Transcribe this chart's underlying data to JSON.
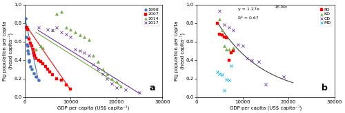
{
  "panel_a": {
    "series": {
      "1998": {
        "color": "#4472C4",
        "marker": "o",
        "markersize": 3,
        "points": [
          [
            200,
            0.85
          ],
          [
            300,
            0.65
          ],
          [
            500,
            0.57
          ],
          [
            600,
            0.55
          ],
          [
            700,
            0.5
          ],
          [
            800,
            0.47
          ],
          [
            900,
            0.4
          ],
          [
            1000,
            0.38
          ],
          [
            1200,
            0.33
          ],
          [
            1500,
            0.3
          ],
          [
            2000,
            0.26
          ],
          [
            2500,
            0.22
          ],
          [
            3000,
            0.18
          ]
        ]
      },
      "2007": {
        "color": "#FF0000",
        "marker": "s",
        "markersize": 3,
        "points": [
          [
            500,
            0.75
          ],
          [
            700,
            0.73
          ],
          [
            1000,
            0.63
          ],
          [
            1200,
            0.58
          ],
          [
            1500,
            0.55
          ],
          [
            1800,
            0.52
          ],
          [
            2000,
            0.48
          ],
          [
            2200,
            0.45
          ],
          [
            2500,
            0.42
          ],
          [
            3000,
            0.4
          ],
          [
            3500,
            0.38
          ],
          [
            4000,
            0.36
          ],
          [
            4500,
            0.33
          ],
          [
            5000,
            0.3
          ],
          [
            5500,
            0.27
          ],
          [
            6000,
            0.24
          ],
          [
            7000,
            0.2
          ],
          [
            8000,
            0.18
          ],
          [
            9000,
            0.13
          ],
          [
            10000,
            0.09
          ]
        ]
      },
      "2014": {
        "color": "#70AD47",
        "marker": "^",
        "markersize": 3,
        "points": [
          [
            2500,
            0.52
          ],
          [
            3500,
            0.55
          ],
          [
            4000,
            0.53
          ],
          [
            6000,
            0.72
          ],
          [
            7000,
            0.9
          ],
          [
            8000,
            0.92
          ],
          [
            9000,
            0.75
          ],
          [
            10000,
            0.73
          ],
          [
            11000,
            0.7
          ],
          [
            12000,
            0.67
          ],
          [
            13000,
            0.65
          ],
          [
            14000,
            0.62
          ],
          [
            15000,
            0.45
          ],
          [
            16000,
            0.38
          ],
          [
            17000,
            0.3
          ],
          [
            18000,
            0.25
          ],
          [
            19000,
            0.2
          ],
          [
            20000,
            0.17
          ],
          [
            21000,
            0.12
          ]
        ]
      },
      "2017": {
        "color": "#7030A0",
        "marker": "x",
        "markersize": 3,
        "points": [
          [
            3000,
            0.75
          ],
          [
            5000,
            0.73
          ],
          [
            6000,
            0.72
          ],
          [
            7000,
            0.75
          ],
          [
            8000,
            0.7
          ],
          [
            9000,
            0.68
          ],
          [
            10000,
            0.65
          ],
          [
            11000,
            0.52
          ],
          [
            12000,
            0.5
          ],
          [
            13000,
            0.48
          ],
          [
            14000,
            0.45
          ],
          [
            15000,
            0.35
          ],
          [
            16000,
            0.3
          ],
          [
            17000,
            0.25
          ],
          [
            18000,
            0.2
          ],
          [
            19000,
            0.15
          ],
          [
            20000,
            0.1
          ],
          [
            22000,
            0.08
          ],
          [
            25000,
            0.05
          ]
        ]
      }
    },
    "trend_lines": [
      {
        "color": "#4472C4",
        "x_start": 200,
        "x_end": 3000,
        "y_start": 0.83,
        "y_end": 0.18
      },
      {
        "color": "#FF0000",
        "x_start": 500,
        "x_end": 10000,
        "y_start": 0.76,
        "y_end": 0.08
      },
      {
        "color": "#70AD47",
        "x_start": 2500,
        "x_end": 21000,
        "y_start": 0.7,
        "y_end": 0.12
      },
      {
        "color": "#7030A0",
        "x_start": 3000,
        "x_end": 25000,
        "y_start": 0.72,
        "y_end": 0.04
      }
    ],
    "xlabel": "GDP per capita (US$ capita⁻¹)",
    "ylabel": "Pig population per capita\n(head capita⁻¹)",
    "xlim": [
      0,
      30000
    ],
    "ylim": [
      0,
      1.0
    ],
    "xticks": [
      0,
      10000,
      20000,
      30000
    ],
    "xticklabels": [
      "0",
      "10000",
      "20000",
      "30000"
    ],
    "yticks": [
      0.0,
      0.2,
      0.4,
      0.6,
      0.8,
      1.0
    ],
    "label": "a",
    "legend_labels": [
      "1998",
      "2007",
      "2014",
      "2017"
    ]
  },
  "panel_b": {
    "series": {
      "PD": {
        "color": "#FF0000",
        "marker": "s",
        "markersize": 3,
        "points": [
          [
            4500,
            0.8
          ],
          [
            5000,
            0.68
          ],
          [
            5500,
            0.67
          ],
          [
            6000,
            0.65
          ],
          [
            6500,
            0.64
          ],
          [
            7000,
            0.4
          ],
          [
            7500,
            0.48
          ],
          [
            8000,
            0.5
          ]
        ]
      },
      "KD": {
        "color": "#70AD47",
        "marker": "^",
        "markersize": 3,
        "points": [
          [
            5000,
            0.84
          ],
          [
            5500,
            0.72
          ],
          [
            6000,
            0.55
          ],
          [
            6500,
            0.52
          ],
          [
            7000,
            0.52
          ],
          [
            8000,
            0.53
          ]
        ]
      },
      "CD": {
        "color": "#7030A0",
        "marker": "x",
        "markersize": 3,
        "points": [
          [
            5000,
            0.93
          ],
          [
            6000,
            0.78
          ],
          [
            7000,
            0.75
          ],
          [
            8000,
            0.72
          ],
          [
            9000,
            0.57
          ],
          [
            10000,
            0.55
          ],
          [
            11000,
            0.42
          ],
          [
            12000,
            0.4
          ],
          [
            13500,
            0.38
          ],
          [
            15000,
            0.14
          ],
          [
            19000,
            0.22
          ]
        ]
      },
      "MD": {
        "color": "#00B0F0",
        "marker": "x",
        "markersize": 3,
        "points": [
          [
            4500,
            0.27
          ],
          [
            5000,
            0.25
          ],
          [
            5500,
            0.24
          ],
          [
            6000,
            0.07
          ],
          [
            6500,
            0.19
          ],
          [
            7000,
            0.18
          ],
          [
            7500,
            0.34
          ]
        ]
      }
    },
    "equation": "y = 1.27e",
    "equation_exp": "-1E-04x",
    "r2": "R² = 0.67",
    "trend_line": {
      "color": "#404040",
      "x_start": 4500,
      "x_end": 21000,
      "a": 1.27,
      "b": -0.0001
    },
    "xlabel": "GDP per capita (US$ capita⁻¹)",
    "ylabel": "Pig population per capita\n(head capita⁻¹)",
    "xlim": [
      0,
      30000
    ],
    "ylim": [
      0,
      1.0
    ],
    "xticks": [
      0,
      10000,
      20000,
      30000
    ],
    "xticklabels": [
      "0",
      "10000",
      "20000",
      "30000"
    ],
    "yticks": [
      0.0,
      0.2,
      0.4,
      0.6,
      0.8,
      1.0
    ],
    "label": "b",
    "legend_labels": [
      "PD",
      "KD",
      "CD",
      "MD"
    ]
  },
  "background_color": "#FFFFFF"
}
